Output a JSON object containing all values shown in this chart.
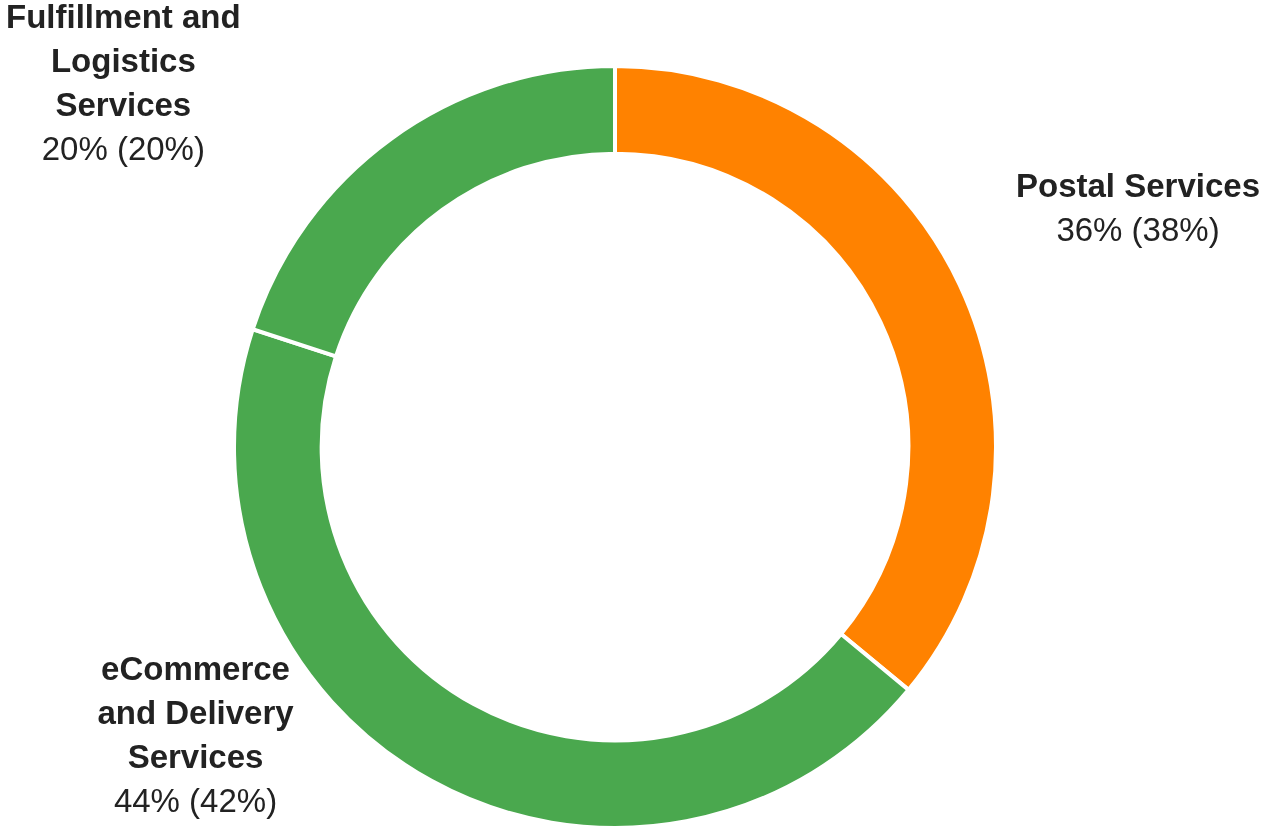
{
  "chart_data": {
    "type": "donut",
    "categories": [
      "Postal Services",
      "eCommerce and Delivery Services",
      "Fulfillment and Logistics Services"
    ],
    "values": [
      36,
      44,
      20
    ],
    "colors": [
      "#ff8200",
      "#4aa84e",
      "#4aa84e"
    ],
    "value_labels": [
      "36% (38%)",
      "44% (42%)",
      "20% (20%)"
    ],
    "legend": false
  }
}
